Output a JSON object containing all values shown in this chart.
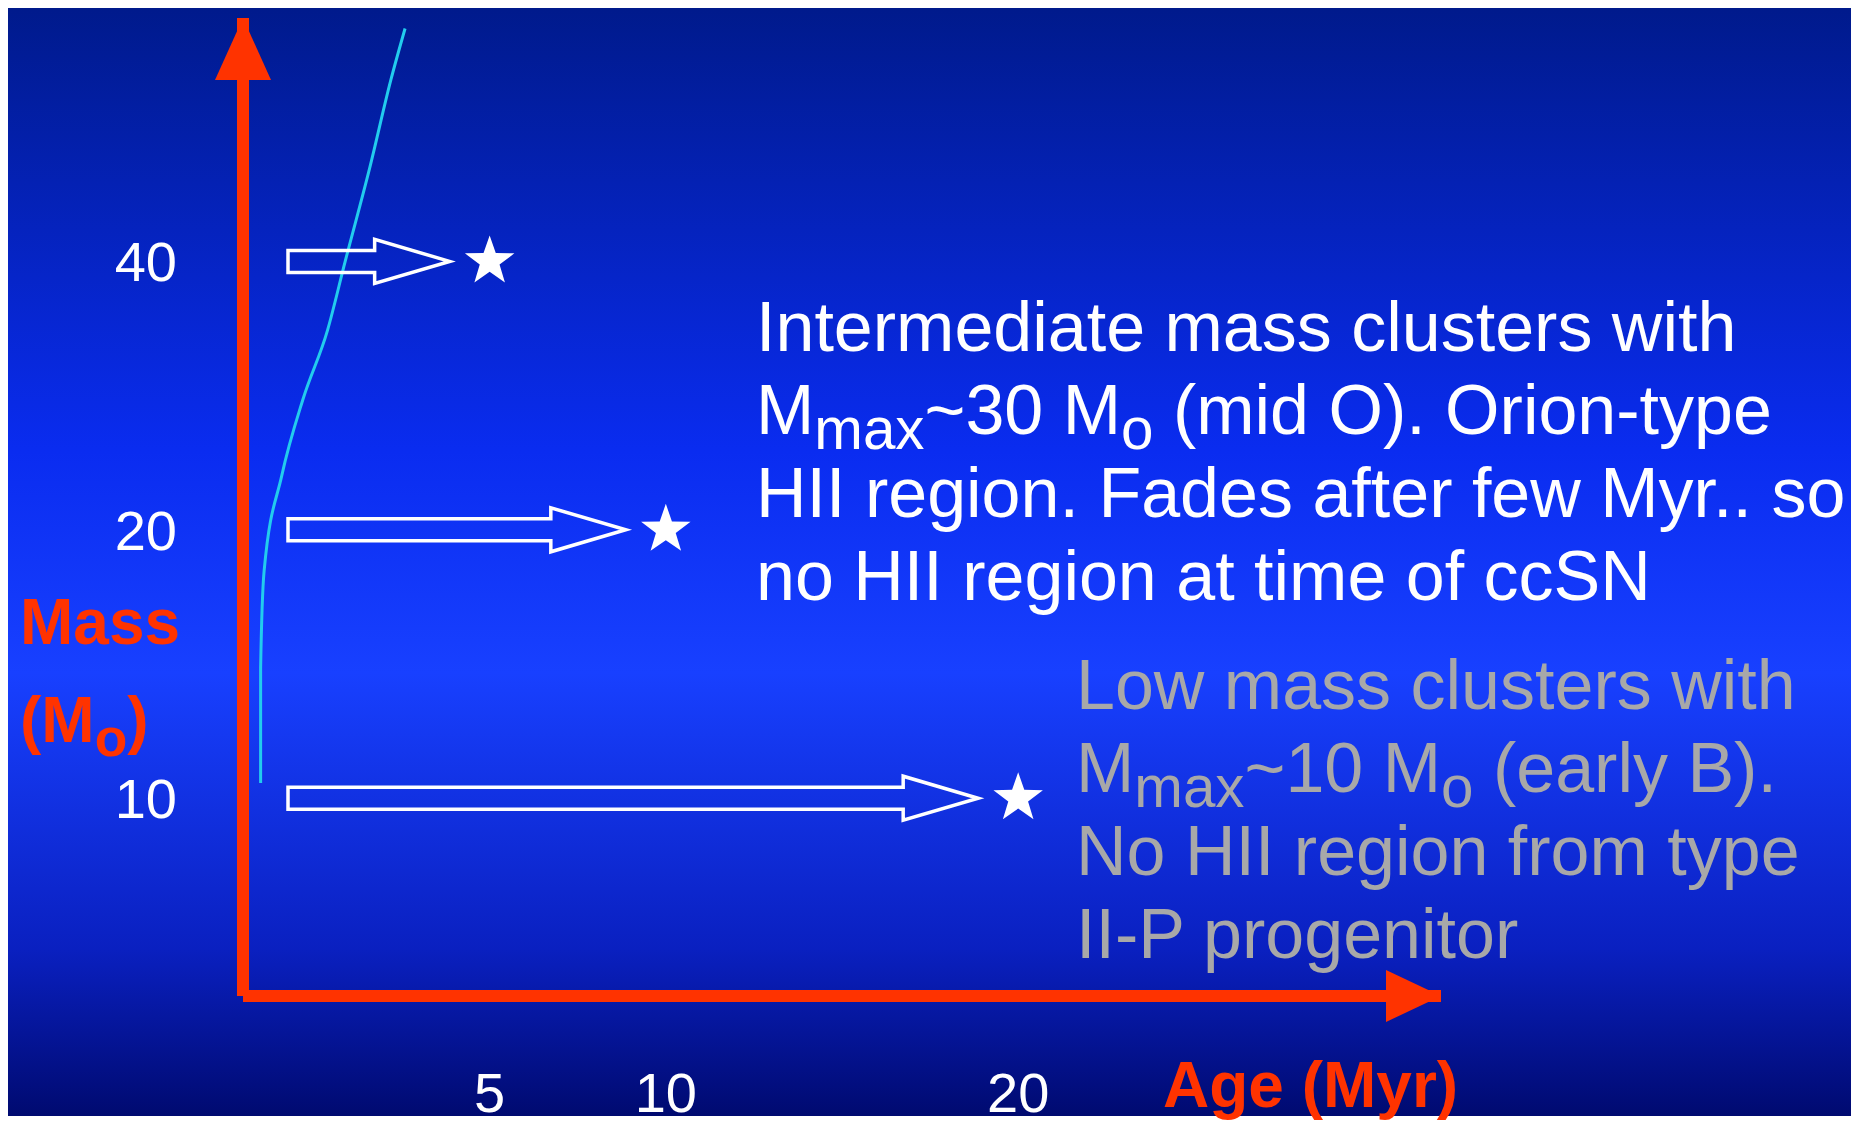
{
  "chart_data": {
    "type": "scatter",
    "xlabel": "Age (Myr)",
    "ylabel": "Mass (M$_{o}$)",
    "xlim": [
      -2,
      32
    ],
    "xticks": [
      5,
      10,
      20
    ],
    "ylim": [
      6,
      75
    ],
    "yticks": [
      10,
      20,
      40
    ],
    "log": "y",
    "series": [
      {
        "type": "line",
        "color": "#22ccee",
        "marker": "none",
        "x": [
          -1.5,
          -1.5,
          -1.4,
          -0.9,
          -0.3,
          0.4,
          0.9,
          1.6,
          2.2,
          2.6
        ],
        "values": [
          10.4,
          14,
          18,
          23,
          28,
          33.5,
          40,
          51,
          64,
          73
        ]
      },
      {
        "color": "#ffffff",
        "marker": "star",
        "x": [
          5,
          10,
          20
        ],
        "values": [
          40,
          20,
          10
        ]
      }
    ],
    "annotations": [
      "Intermediate mass clusters with M$_{max}$~30 M$_{o}$ (mid O). Orion-type HII region. Fades after few Myr.. so no HII region at time of ccSN",
      "Low mass clusters with M$_{max}$~10 M$_{o}$ (early B). No HII region from type II-P progenitor"
    ]
  }
}
